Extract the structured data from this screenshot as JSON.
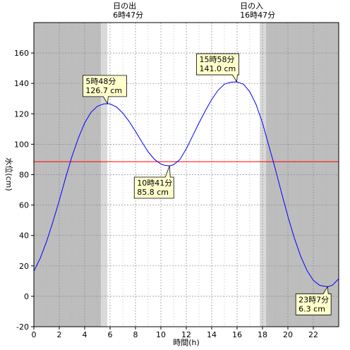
{
  "chart_data": {
    "type": "line",
    "xlabel": "時間(h)",
    "ylabel": "水位(cm)",
    "xlim": [
      0,
      24
    ],
    "ylim": [
      -20,
      180
    ],
    "x_ticks": [
      0,
      2,
      4,
      6,
      8,
      10,
      12,
      14,
      16,
      18,
      20,
      22
    ],
    "y_ticks": [
      -20,
      0,
      20,
      40,
      60,
      80,
      100,
      120,
      140,
      160
    ],
    "reference_level": 88.5,
    "sunrise": {
      "hour": 6.783,
      "labels": [
        "日の出",
        "6時47分"
      ]
    },
    "sunset": {
      "hour": 16.783,
      "labels": [
        "日の入",
        "16時47分"
      ]
    },
    "series": [
      {
        "x": [
          0,
          0.5,
          1,
          1.5,
          2,
          2.5,
          3,
          3.5,
          4,
          4.5,
          5,
          5.5,
          5.8,
          6,
          6.5,
          7,
          7.5,
          8,
          8.5,
          9,
          9.5,
          10,
          10.3,
          10.68,
          11,
          11.5,
          12,
          12.5,
          13,
          13.5,
          14,
          14.5,
          15,
          15.5,
          15.97,
          16.5,
          17,
          17.5,
          18,
          18.5,
          19,
          19.5,
          20,
          20.5,
          21,
          21.5,
          22,
          22.5,
          23.12,
          23.5,
          24
        ],
        "values": [
          16.5,
          25,
          36,
          49,
          63,
          78,
          92,
          104,
          114,
          121,
          125,
          126.5,
          126.7,
          126.5,
          124.5,
          120.5,
          115,
          108.5,
          101.5,
          95,
          90,
          87,
          86.1,
          85.8,
          86.5,
          90,
          97,
          105.5,
          114,
          122,
          129.5,
          135.5,
          139.5,
          140.8,
          141.0,
          139.5,
          134.5,
          126,
          114,
          99,
          84,
          68,
          52.5,
          38.5,
          26.5,
          17,
          10.5,
          7.2,
          6.3,
          7.3,
          11.5
        ]
      }
    ],
    "annotations": [
      {
        "x": 5.8,
        "y": 126.7,
        "lines": [
          "5時48分",
          "126.7 cm"
        ]
      },
      {
        "x": 10.68,
        "y": 85.8,
        "lines": [
          "10時41分",
          "85.8 cm"
        ]
      },
      {
        "x": 15.97,
        "y": 141.0,
        "lines": [
          "15時58分",
          "141.0 cm"
        ]
      },
      {
        "x": 23.12,
        "y": 6.3,
        "lines": [
          "23時7分",
          "6.3 cm"
        ]
      }
    ],
    "colors": {
      "line": "#0000ff",
      "reference": "#ff0000",
      "night": "#bdbdbd",
      "twilight": "#d9d9d9",
      "day": "#ffffff",
      "callout_fill": "#ffffcc"
    }
  }
}
